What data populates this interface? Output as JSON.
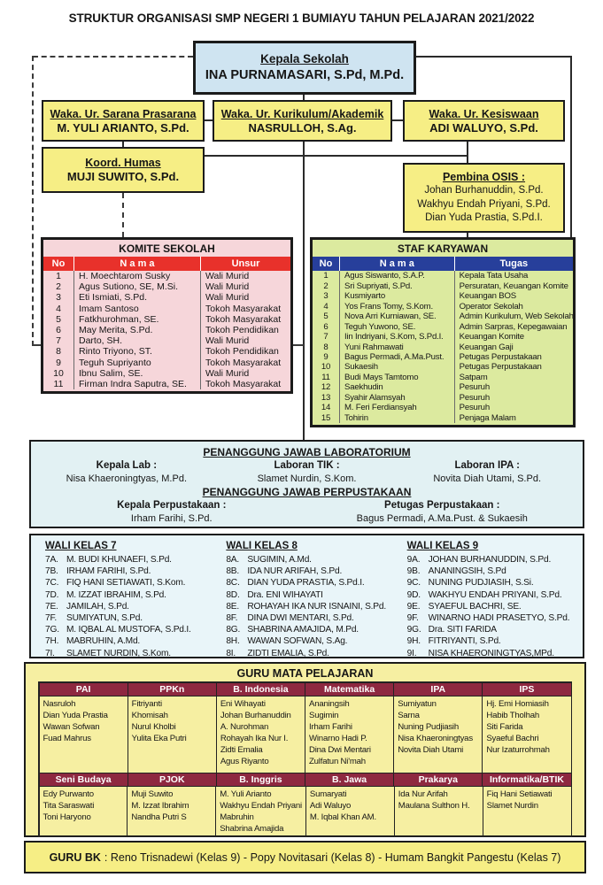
{
  "title": "STRUKTUR ORGANISASI SMP NEGERI 1 BUMIAYU TAHUN PELAJARAN 2021/2022",
  "colors": {
    "box_yellow": "#f6ee85",
    "kepala_blue": "#cfe4f1",
    "komite_pink": "#f6d6da",
    "komite_header_red": "#e8312b",
    "staf_green": "#dcea9f",
    "staf_header_blue": "#273f9b",
    "pj_cyan": "#e2f1f3",
    "wali_cyan": "#e9f5f9",
    "mapel_yellow": "#f6efa2",
    "mapel_header_maroon": "#8e2840"
  },
  "kepala_sekolah": {
    "title": "Kepala Sekolah",
    "name": "INA PURNAMASARI, S.Pd, M.Pd."
  },
  "waka": [
    {
      "title": "Waka. Ur. Sarana Prasarana",
      "name": "M. YULI ARIANTO, S.Pd."
    },
    {
      "title": "Waka. Ur. Kurikulum/Akademik",
      "name": "NASRULLOH, S.Ag."
    },
    {
      "title": "Waka. Ur. Kesiswaan",
      "name": "ADI WALUYO, S.Pd."
    }
  ],
  "koord_humas": {
    "title": "Koord. Humas",
    "name": "MUJI SUWITO, S.Pd."
  },
  "pembina_osis": {
    "title": "Pembina OSIS :",
    "names": [
      "Johan Burhanuddin, S.Pd.",
      "Wakhyu Endah Priyani, S.Pd.",
      "Dian Yuda Prastia, S.Pd.I."
    ]
  },
  "komite": {
    "title": "KOMITE SEKOLAH",
    "headers": [
      "No",
      "N a m a",
      "Unsur"
    ],
    "rows": [
      [
        "1",
        "H. Moechtarom Susky",
        "Wali Murid"
      ],
      [
        "2",
        "Agus Sutiono, SE, M.Si.",
        "Wali Murid"
      ],
      [
        "3",
        "Eti Ismiati, S.Pd.",
        "Wali Murid"
      ],
      [
        "4",
        "Imam Santoso",
        "Tokoh Masyarakat"
      ],
      [
        "5",
        "Fatkhurohman, SE.",
        "Tokoh Masyarakat"
      ],
      [
        "6",
        "May Merita, S.Pd.",
        "Tokoh Pendidikan"
      ],
      [
        "7",
        "Darto, SH.",
        "Wali Murid"
      ],
      [
        "8",
        "Rinto Triyono, ST.",
        "Tokoh Pendidikan"
      ],
      [
        "9",
        "Teguh Supriyanto",
        "Tokoh Masyarakat"
      ],
      [
        "10",
        "Ibnu Salim, SE.",
        "Wali Murid"
      ],
      [
        "11",
        "Firman Indra Saputra, SE.",
        "Tokoh Masyarakat"
      ]
    ]
  },
  "staf": {
    "title": "STAF KARYAWAN",
    "headers": [
      "No",
      "N a m a",
      "Tugas"
    ],
    "rows": [
      [
        "1",
        "Agus Siswanto, S.A.P.",
        "Kepala Tata Usaha"
      ],
      [
        "2",
        "Sri Supriyati, S.Pd.",
        "Persuratan, Keuangan Komite"
      ],
      [
        "3",
        "Kusmiyarto",
        "Keuangan BOS"
      ],
      [
        "4",
        "Yos Frans Tomy, S.Kom.",
        "Operator Sekolah"
      ],
      [
        "5",
        "Nova Arri Kurniawan, SE.",
        "Admin Kurikulum, Web Sekolah"
      ],
      [
        "6",
        "Teguh Yuwono, SE.",
        "Admin Sarpras, Kepegawaian"
      ],
      [
        "7",
        "Iin Indriyani, S.Kom, S.Pd.I.",
        "Keuangan Komite"
      ],
      [
        "8",
        "Yuni Rahmawati",
        "Keuangan Gaji"
      ],
      [
        "9",
        "Bagus Permadi, A.Ma.Pust.",
        "Petugas Perpustakaan"
      ],
      [
        "10",
        "Sukaesih",
        "Petugas Perpustakaan"
      ],
      [
        "11",
        "Budi Mays Tamtomo",
        "Satpam"
      ],
      [
        "12",
        "Saekhudin",
        "Pesuruh"
      ],
      [
        "13",
        "Syahir Alamsyah",
        "Pesuruh"
      ],
      [
        "14",
        "M. Feri Ferdiansyah",
        "Pesuruh"
      ],
      [
        "15",
        "Tohirin",
        "Penjaga Malam"
      ]
    ]
  },
  "penanggung_jawab": {
    "lab_title": "PENANGGUNG JAWAB LABORATORIUM",
    "lab_cols": [
      {
        "role": "Kepala Lab :",
        "name": "Nisa Khaeroningtyas, M.Pd."
      },
      {
        "role": "Laboran TIK :",
        "name": "Slamet Nurdin, S.Kom."
      },
      {
        "role": "Laboran IPA :",
        "name": "Novita Diah Utami, S.Pd."
      }
    ],
    "perpus_title": "PENANGGUNG JAWAB PERPUSTAKAAN",
    "perpus_cols": [
      {
        "role": "Kepala Perpustakaan :",
        "name": "Irham Farihi, S.Pd."
      },
      {
        "role": "Petugas Perpustakaan :",
        "name": "Bagus Permadi, A.Ma.Pust. &  Sukaesih"
      }
    ]
  },
  "wali_kelas": [
    {
      "title": "WALI KELAS 7",
      "items": [
        [
          "7A.",
          "M. BUDI KHUNAEFI, S.Pd."
        ],
        [
          "7B.",
          "IRHAM FARIHI, S.Pd."
        ],
        [
          "7C.",
          "FIQ HANI SETIAWATI, S.Kom."
        ],
        [
          "7D.",
          "M. IZZAT IBRAHIM, S.Pd."
        ],
        [
          "7E.",
          "JAMILAH, S.Pd."
        ],
        [
          "7F.",
          "SUMIYATUN, S.Pd."
        ],
        [
          "7G.",
          "M. IQBAL AL MUSTOFA, S.Pd.I."
        ],
        [
          "7H.",
          "MABRUHIN, A.Md."
        ],
        [
          "7I.",
          "SLAMET NURDIN, S.Kom."
        ]
      ]
    },
    {
      "title": "WALI KELAS 8",
      "items": [
        [
          "8A.",
          "SUGIMIN, A.Md."
        ],
        [
          "8B.",
          "IDA NUR ARIFAH, S.Pd."
        ],
        [
          "8C.",
          "DIAN YUDA PRASTIA, S.Pd.I."
        ],
        [
          "8D.",
          "Dra. ENI WIHAYATI"
        ],
        [
          "8E.",
          "ROHAYAH IKA NUR ISNAINI, S.Pd."
        ],
        [
          "8F.",
          "DINA DWI MENTARI, S.Pd."
        ],
        [
          "8G.",
          "SHABRINA AMAJIDA, M.Pd."
        ],
        [
          "8H.",
          "WAWAN SOFWAN, S.Ag."
        ],
        [
          "8I.",
          "ZIDTI EMALIA, S.Pd."
        ]
      ]
    },
    {
      "title": "WALI KELAS 9",
      "items": [
        [
          "9A.",
          "JOHAN BURHANUDDIN, S.Pd."
        ],
        [
          "9B.",
          "ANANINGSIH, S.Pd"
        ],
        [
          "9C.",
          "NUNING PUDJIASIH, S.Si."
        ],
        [
          "9D.",
          "WAKHYU ENDAH PRIYANI, S.Pd."
        ],
        [
          "9E.",
          "SYAEFUL BACHRI, SE."
        ],
        [
          "9F.",
          "WINARNO HADI PRASETYO, S.Pd."
        ],
        [
          "9G.",
          "Dra. SITI FARIDA"
        ],
        [
          "9H.",
          "FITRIYANTI, S.Pd."
        ],
        [
          "9I.",
          "NISA KHAERONINGTYAS,MPd."
        ]
      ]
    }
  ],
  "guru_mapel": {
    "title": "GURU MATA PELAJARAN",
    "bands": [
      [
        {
          "subject": "PAI",
          "teachers": [
            "Nasruloh",
            "Dian Yuda Prastia",
            "Wawan Sofwan",
            "Fuad Mahrus"
          ]
        },
        {
          "subject": "PPKn",
          "teachers": [
            "Fitriyanti",
            "Khomisah",
            "Nurul Kholbi",
            "Yulita Eka Putri"
          ]
        },
        {
          "subject": "B. Indonesia",
          "teachers": [
            "Eni Wihayati",
            "Johan Burhanuddin",
            "A. Nurohman",
            "Rohayah Ika Nur I.",
            "Zidti Emalia",
            "Agus Riyanto"
          ]
        },
        {
          "subject": "Matematika",
          "teachers": [
            "Ananingsih",
            "Sugimin",
            "Irham Farihi",
            "Winarno Hadi P.",
            "Dina Dwi Mentari",
            "Zulfatun Ni'mah"
          ]
        },
        {
          "subject": "IPA",
          "teachers": [
            "Sumiyatun",
            "Sarna",
            "Nuning Pudjiasih",
            "Nisa Khaeroningtyas",
            "Novita Diah Utami"
          ]
        },
        {
          "subject": "IPS",
          "teachers": [
            "Hj. Emi Homiasih",
            "Habib Tholhah",
            "Siti Farida",
            "Syaeful Bachri",
            "Nur Izaturrohmah"
          ]
        }
      ],
      [
        {
          "subject": "Seni Budaya",
          "teachers": [
            "Edy Purwanto",
            "Tita Saraswati",
            "Toni Haryono"
          ]
        },
        {
          "subject": "PJOK",
          "teachers": [
            "Muji Suwito",
            "M. Izzat Ibrahim",
            "Nandha Putri S"
          ]
        },
        {
          "subject": "B. Inggris",
          "teachers": [
            "M. Yuli Arianto",
            "Wakhyu Endah Priyani",
            "Mabruhin",
            "Shabrina Amajida"
          ]
        },
        {
          "subject": "B. Jawa",
          "teachers": [
            "Sumaryati",
            "Adi Waluyo",
            "M. Iqbal Khan AM."
          ]
        },
        {
          "subject": "Prakarya",
          "teachers": [
            "Ida Nur Arifah",
            "Maulana Sulthon H."
          ]
        },
        {
          "subject": "Informatika/BTIK",
          "teachers": [
            "Fiq Hani Setiawati",
            "Slamet Nurdin"
          ]
        }
      ]
    ]
  },
  "guru_bk": {
    "label": "GURU BK",
    "text": ":  Reno Trisnadewi (Kelas 9) - Popy Novitasari (Kelas 8) - Humam Bangkit Pangestu (Kelas 7)"
  }
}
